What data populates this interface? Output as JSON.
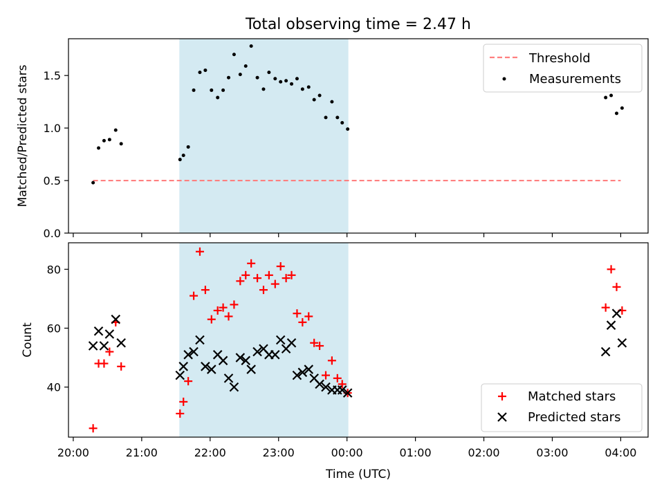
{
  "figure": {
    "title": "Total observing time = 2.47 h"
  },
  "chart_data": [
    {
      "type": "scatter",
      "panel": "top",
      "xlabel": "",
      "ylabel": "Matched/Predicted stars",
      "xlim": [
        19.93,
        28.4
      ],
      "ylim": [
        0.0,
        1.85
      ],
      "yticks": [
        0.0,
        0.5,
        1.0,
        1.5
      ],
      "grid": false,
      "legend": "top-right",
      "shaded_span": [
        21.55,
        24.02
      ],
      "shaded_color": "#add8e6",
      "threshold": {
        "name": "Threshold",
        "x": [
          20.29,
          28.0
        ],
        "y": 0.5,
        "color": "#ff7f7f",
        "style": "dashed"
      },
      "series": [
        {
          "name": "Measurements",
          "marker": "dot",
          "color": "#000000",
          "x": [
            20.29,
            20.37,
            20.45,
            20.53,
            20.62,
            20.7,
            21.56,
            21.61,
            21.68,
            21.76,
            21.85,
            21.93,
            22.02,
            22.11,
            22.19,
            22.27,
            22.35,
            22.44,
            22.52,
            22.6,
            22.69,
            22.78,
            22.86,
            22.95,
            23.03,
            23.11,
            23.19,
            23.27,
            23.35,
            23.44,
            23.52,
            23.6,
            23.69,
            23.78,
            23.86,
            23.93,
            24.01,
            27.78,
            27.86,
            27.94,
            28.02
          ],
          "y": [
            0.48,
            0.81,
            0.88,
            0.89,
            0.98,
            0.85,
            0.7,
            0.74,
            0.82,
            1.36,
            1.53,
            1.55,
            1.36,
            1.29,
            1.36,
            1.48,
            1.7,
            1.51,
            1.59,
            1.78,
            1.48,
            1.37,
            1.53,
            1.47,
            1.44,
            1.45,
            1.42,
            1.47,
            1.37,
            1.39,
            1.27,
            1.31,
            1.1,
            1.25,
            1.1,
            1.05,
            0.99,
            1.29,
            1.31,
            1.14,
            1.19
          ]
        }
      ]
    },
    {
      "type": "scatter",
      "panel": "bottom",
      "xlabel": "Time (UTC)",
      "ylabel": "Count",
      "xlim": [
        19.93,
        28.4
      ],
      "ylim": [
        23,
        89
      ],
      "yticks": [
        40,
        60,
        80
      ],
      "xticks": [
        20,
        21,
        22,
        23,
        24,
        25,
        26,
        27,
        28
      ],
      "xticklabels": [
        "20:00",
        "21:00",
        "22:00",
        "23:00",
        "00:00",
        "01:00",
        "02:00",
        "03:00",
        "04:00"
      ],
      "grid": false,
      "legend": "bottom-right",
      "shaded_span": [
        21.55,
        24.02
      ],
      "shaded_color": "#add8e6",
      "series": [
        {
          "name": "Matched stars",
          "marker": "plus",
          "color": "#ff0000",
          "x": [
            20.29,
            20.37,
            20.45,
            20.53,
            20.62,
            20.7,
            21.56,
            21.61,
            21.68,
            21.76,
            21.85,
            21.93,
            22.02,
            22.11,
            22.19,
            22.27,
            22.35,
            22.44,
            22.52,
            22.6,
            22.69,
            22.78,
            22.86,
            22.95,
            23.03,
            23.11,
            23.19,
            23.27,
            23.35,
            23.44,
            23.52,
            23.6,
            23.69,
            23.78,
            23.86,
            23.93,
            24.01,
            27.78,
            27.86,
            27.94,
            28.02
          ],
          "y": [
            26,
            48,
            48,
            52,
            62,
            47,
            31,
            35,
            42,
            71,
            86,
            73,
            63,
            66,
            67,
            64,
            68,
            76,
            78,
            82,
            77,
            73,
            78,
            75,
            81,
            77,
            78,
            65,
            62,
            64,
            55,
            54,
            44,
            49,
            43,
            41,
            38,
            67,
            80,
            74,
            66
          ]
        },
        {
          "name": "Predicted stars",
          "marker": "x",
          "color": "#000000",
          "x": [
            20.29,
            20.37,
            20.45,
            20.53,
            20.62,
            20.7,
            21.56,
            21.61,
            21.68,
            21.76,
            21.85,
            21.93,
            22.02,
            22.11,
            22.19,
            22.27,
            22.35,
            22.44,
            22.52,
            22.6,
            22.69,
            22.78,
            22.86,
            22.95,
            23.03,
            23.11,
            23.19,
            23.27,
            23.35,
            23.44,
            23.52,
            23.6,
            23.69,
            23.78,
            23.86,
            23.93,
            24.01,
            27.78,
            27.86,
            27.94,
            28.02
          ],
          "y": [
            54,
            59,
            54,
            58,
            63,
            55,
            44,
            47,
            51,
            52,
            56,
            47,
            46,
            51,
            49,
            43,
            40,
            50,
            49,
            46,
            52,
            53,
            51,
            51,
            56,
            53,
            55,
            44,
            45,
            46,
            43,
            41,
            40,
            39,
            39,
            39,
            38,
            52,
            61,
            65,
            55
          ]
        }
      ]
    }
  ]
}
